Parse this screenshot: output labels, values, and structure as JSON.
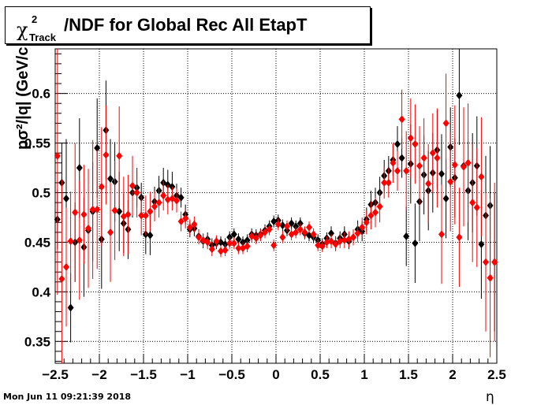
{
  "title": {
    "chi": "χ",
    "sup": "2",
    "sub": "Track",
    "main": "/NDF for Global Rec All EtapT"
  },
  "timestamp": "Mon Jun 11 09:21:39 2018",
  "chart_data": {
    "type": "scatter",
    "title": "χ²_Track/NDF for Global Rec All EtapT",
    "xlabel": "η",
    "ylabel": "pσ²/|q| (GeV/c",
    "xlim": [
      -2.5,
      2.5
    ],
    "ylim": [
      0.328,
      0.645
    ],
    "grid": true,
    "xticks": [
      -2.5,
      -2,
      -1.5,
      -1,
      -0.5,
      0,
      0.5,
      1,
      1.5,
      2,
      2.5
    ],
    "xtick_labels": [
      "−2.5",
      "−2",
      "−1.5",
      "−1",
      "−0.5",
      "0",
      "0.5",
      "1",
      "1.5",
      "2",
      "2.5"
    ],
    "yticks": [
      0.35,
      0.4,
      0.45,
      0.5,
      0.55,
      0.6
    ],
    "ytick_labels": [
      "0.35",
      "0.4",
      "0.45",
      "0.5",
      "0.55",
      "0.6"
    ],
    "series": [
      {
        "color": "#000000",
        "x": [
          -2.475,
          -2.425,
          -2.375,
          -2.325,
          -2.275,
          -2.225,
          -2.175,
          -2.125,
          -2.075,
          -2.025,
          -1.975,
          -1.925,
          -1.875,
          -1.825,
          -1.775,
          -1.725,
          -1.675,
          -1.625,
          -1.575,
          -1.525,
          -1.475,
          -1.425,
          -1.375,
          -1.325,
          -1.275,
          -1.225,
          -1.175,
          -1.125,
          -1.075,
          -1.025,
          -0.975,
          -0.925,
          -0.875,
          -0.825,
          -0.775,
          -0.725,
          -0.675,
          -0.625,
          -0.575,
          -0.525,
          -0.475,
          -0.425,
          -0.375,
          -0.325,
          -0.275,
          -0.225,
          -0.175,
          -0.125,
          -0.075,
          -0.025,
          0.025,
          0.075,
          0.125,
          0.175,
          0.225,
          0.275,
          0.325,
          0.375,
          0.425,
          0.475,
          0.525,
          0.575,
          0.625,
          0.675,
          0.725,
          0.775,
          0.825,
          0.875,
          0.925,
          0.975,
          1.025,
          1.075,
          1.125,
          1.175,
          1.225,
          1.275,
          1.325,
          1.375,
          1.425,
          1.475,
          1.525,
          1.575,
          1.625,
          1.675,
          1.725,
          1.775,
          1.825,
          1.875,
          1.925,
          1.975,
          2.025,
          2.075,
          2.125,
          2.175,
          2.225,
          2.275,
          2.325,
          2.375,
          2.425,
          2.475
        ],
        "y": [
          0.473,
          0.51,
          0.494,
          0.384,
          0.45,
          0.525,
          0.445,
          0.462,
          0.481,
          0.545,
          0.453,
          0.563,
          0.514,
          0.511,
          0.481,
          0.469,
          0.463,
          0.5,
          0.505,
          0.495,
          0.458,
          0.457,
          0.491,
          0.502,
          0.51,
          0.508,
          0.506,
          0.497,
          0.495,
          0.478,
          0.463,
          0.464,
          0.456,
          0.451,
          0.453,
          0.447,
          0.449,
          0.45,
          0.448,
          0.455,
          0.458,
          0.453,
          0.45,
          0.452,
          0.458,
          0.457,
          0.458,
          0.462,
          0.466,
          0.471,
          0.472,
          0.467,
          0.462,
          0.469,
          0.466,
          0.469,
          0.459,
          0.457,
          0.455,
          0.452,
          0.448,
          0.454,
          0.459,
          0.449,
          0.454,
          0.458,
          0.451,
          0.455,
          0.463,
          0.461,
          0.473,
          0.488,
          0.49,
          0.5,
          0.517,
          0.522,
          0.533,
          0.549,
          0.535,
          0.456,
          0.529,
          0.449,
          0.491,
          0.518,
          0.502,
          0.52,
          0.543,
          0.519,
          0.494,
          0.546,
          0.515,
          0.598,
          0.527,
          0.502,
          0.51,
          0.527,
          0.448,
          0.477,
          0.487,
          0.43
        ],
        "err": [
          0.03,
          0.04,
          0.06,
          0.035,
          0.04,
          0.05,
          0.05,
          0.04,
          0.05,
          0.05,
          0.05,
          0.05,
          0.04,
          0.04,
          0.04,
          0.03,
          0.03,
          0.025,
          0.02,
          0.015,
          0.02,
          0.02,
          0.015,
          0.015,
          0.015,
          0.015,
          0.015,
          0.012,
          0.01,
          0.01,
          0.008,
          0.008,
          0.007,
          0.007,
          0.007,
          0.007,
          0.006,
          0.006,
          0.006,
          0.006,
          0.006,
          0.006,
          0.006,
          0.006,
          0.006,
          0.006,
          0.006,
          0.006,
          0.006,
          0.006,
          0.006,
          0.006,
          0.006,
          0.006,
          0.006,
          0.006,
          0.006,
          0.006,
          0.006,
          0.006,
          0.006,
          0.006,
          0.007,
          0.007,
          0.007,
          0.008,
          0.008,
          0.008,
          0.009,
          0.01,
          0.012,
          0.014,
          0.015,
          0.016,
          0.016,
          0.015,
          0.016,
          0.018,
          0.02,
          0.03,
          0.04,
          0.04,
          0.04,
          0.04,
          0.04,
          0.04,
          0.04,
          0.04,
          0.04,
          0.04,
          0.04,
          0.05,
          0.05,
          0.05,
          0.05,
          0.05,
          0.055,
          0.06,
          0.06,
          0.07
        ]
      },
      {
        "color": "#ff0000",
        "x": [
          -2.475,
          -2.425,
          -2.375,
          -2.325,
          -2.275,
          -2.225,
          -2.175,
          -2.125,
          -2.075,
          -2.025,
          -1.975,
          -1.925,
          -1.875,
          -1.825,
          -1.775,
          -1.725,
          -1.675,
          -1.625,
          -1.575,
          -1.525,
          -1.475,
          -1.425,
          -1.375,
          -1.325,
          -1.275,
          -1.225,
          -1.175,
          -1.125,
          -1.075,
          -1.025,
          -0.975,
          -0.925,
          -0.875,
          -0.825,
          -0.775,
          -0.725,
          -0.675,
          -0.625,
          -0.575,
          -0.525,
          -0.475,
          -0.425,
          -0.375,
          -0.325,
          -0.275,
          -0.225,
          -0.175,
          -0.125,
          -0.075,
          -0.025,
          0.025,
          0.075,
          0.125,
          0.175,
          0.225,
          0.275,
          0.325,
          0.375,
          0.425,
          0.475,
          0.525,
          0.575,
          0.625,
          0.675,
          0.725,
          0.775,
          0.825,
          0.875,
          0.925,
          0.975,
          1.025,
          1.075,
          1.125,
          1.175,
          1.225,
          1.275,
          1.325,
          1.375,
          1.425,
          1.475,
          1.525,
          1.575,
          1.625,
          1.675,
          1.725,
          1.775,
          1.825,
          1.875,
          1.925,
          1.975,
          2.025,
          2.075,
          2.125,
          2.175,
          2.225,
          2.275,
          2.325,
          2.375,
          2.425,
          2.475
        ],
        "y": [
          0.537,
          0.413,
          0.425,
          0.451,
          0.48,
          0.452,
          0.478,
          0.464,
          0.483,
          0.483,
          0.506,
          0.538,
          0.46,
          0.482,
          0.537,
          0.476,
          0.478,
          0.507,
          0.5,
          0.477,
          0.477,
          0.481,
          0.486,
          0.49,
          0.497,
          0.493,
          0.494,
          0.492,
          0.471,
          0.474,
          0.465,
          0.468,
          0.455,
          0.452,
          0.45,
          0.443,
          0.451,
          0.441,
          0.442,
          0.449,
          0.449,
          0.444,
          0.444,
          0.446,
          0.456,
          0.454,
          0.457,
          0.46,
          0.463,
          0.447,
          0.468,
          0.455,
          0.466,
          0.458,
          0.46,
          0.463,
          0.46,
          0.465,
          0.458,
          0.447,
          0.446,
          0.45,
          0.451,
          0.448,
          0.451,
          0.452,
          0.453,
          0.455,
          0.459,
          0.465,
          0.47,
          0.477,
          0.48,
          0.486,
          0.51,
          0.51,
          0.53,
          0.522,
          0.574,
          0.522,
          0.555,
          0.549,
          0.527,
          0.535,
          0.509,
          0.54,
          0.535,
          0.458,
          0.57,
          0.511,
          0.528,
          0.455,
          0.526,
          0.53,
          0.49,
          0.485,
          0.516,
          0.43,
          0.414,
          0.43
        ],
        "err": [
          0.14,
          0.1,
          0.06,
          0.05,
          0.07,
          0.06,
          0.05,
          0.06,
          0.07,
          0.06,
          0.06,
          0.05,
          0.05,
          0.05,
          0.05,
          0.04,
          0.04,
          0.03,
          0.025,
          0.02,
          0.02,
          0.02,
          0.015,
          0.015,
          0.015,
          0.015,
          0.012,
          0.012,
          0.01,
          0.01,
          0.008,
          0.008,
          0.007,
          0.007,
          0.007,
          0.007,
          0.006,
          0.006,
          0.006,
          0.006,
          0.006,
          0.006,
          0.006,
          0.006,
          0.006,
          0.006,
          0.006,
          0.006,
          0.006,
          0.006,
          0.006,
          0.006,
          0.006,
          0.006,
          0.006,
          0.006,
          0.006,
          0.006,
          0.006,
          0.006,
          0.006,
          0.006,
          0.007,
          0.007,
          0.007,
          0.008,
          0.008,
          0.008,
          0.009,
          0.01,
          0.012,
          0.014,
          0.015,
          0.016,
          0.016,
          0.015,
          0.02,
          0.02,
          0.03,
          0.04,
          0.04,
          0.04,
          0.04,
          0.04,
          0.04,
          0.04,
          0.05,
          0.05,
          0.05,
          0.05,
          0.06,
          0.05,
          0.06,
          0.06,
          0.06,
          0.06,
          0.06,
          0.07,
          0.08,
          0.08
        ]
      }
    ]
  }
}
